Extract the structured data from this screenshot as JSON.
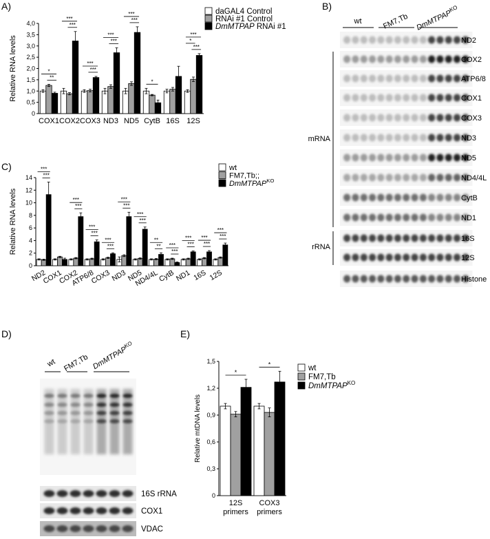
{
  "panel_labels": [
    "A)",
    "B)",
    "C)",
    "D)",
    "E)"
  ],
  "colors": {
    "white": "#ffffff",
    "grey": "#a0a0a0",
    "black": "#000000"
  },
  "chart_data": [
    {
      "id": "A",
      "type": "bar",
      "ylabel": "Relative RNA levels",
      "ylim": [
        0,
        4
      ],
      "yticks": [
        "0",
        "0,5",
        "1,0",
        "1,5",
        "2,0",
        "2,5",
        "3,0",
        "3,5",
        "4,0"
      ],
      "categories": [
        "COX1",
        "COX2",
        "COX3",
        "ND3",
        "ND5",
        "CytB",
        "16S",
        "12S"
      ],
      "legend_position": "top-right",
      "series": [
        {
          "name": "daGAL4 Control",
          "color": "#ffffff",
          "values": [
            1.0,
            1.0,
            1.0,
            1.0,
            1.0,
            1.0,
            1.0,
            1.0
          ],
          "errors": [
            0.06,
            0.12,
            0.06,
            0.12,
            0.12,
            0.12,
            0.08,
            0.06
          ]
        },
        {
          "name": "RNAi #1 Control",
          "color": "#a0a0a0",
          "values": [
            1.25,
            0.88,
            1.02,
            1.2,
            1.33,
            0.82,
            1.08,
            1.52
          ],
          "errors": [
            0.05,
            0.05,
            0.06,
            0.08,
            0.08,
            0.03,
            0.08,
            0.1
          ]
        },
        {
          "name_prefix": "DmMTPAP",
          "name_suffix": " RNAi #1",
          "color": "#000000",
          "values": [
            0.9,
            3.22,
            1.6,
            2.7,
            3.6,
            0.48,
            1.65,
            2.58
          ],
          "errors": [
            0.05,
            0.42,
            0.05,
            0.22,
            0.25,
            0.12,
            0.45,
            0.08
          ]
        }
      ],
      "significance": [
        {
          "category": "COX1",
          "marks": [
            "*",
            "**"
          ]
        },
        {
          "category": "COX2",
          "marks": [
            "***",
            "***"
          ]
        },
        {
          "category": "COX3",
          "marks": [
            "***",
            "***"
          ]
        },
        {
          "category": "ND3",
          "marks": [
            "***",
            "***"
          ]
        },
        {
          "category": "ND5",
          "marks": [
            "***",
            "***"
          ]
        },
        {
          "category": "CytB",
          "marks": [
            "*"
          ]
        },
        {
          "category": "12S",
          "marks": [
            "***",
            "*",
            "***"
          ]
        }
      ]
    },
    {
      "id": "C",
      "type": "bar",
      "ylabel": "Relative RNA levels",
      "ylim": [
        0,
        14
      ],
      "yticks": [
        "0",
        "2",
        "4",
        "6",
        "8",
        "10",
        "12",
        "14"
      ],
      "categories": [
        "ND2",
        "COX1",
        "COX2",
        "ATP6/8",
        "COX3",
        "ND3",
        "ND5",
        "ND4/4L",
        "CytB",
        "ND1",
        "16S",
        "12S"
      ],
      "legend_position": "top-right",
      "series": [
        {
          "name": "wt",
          "color": "#ffffff",
          "values": [
            1,
            1,
            1,
            1,
            1,
            1,
            1,
            1,
            1,
            1,
            1,
            1
          ],
          "errors": [
            0.1,
            0.1,
            0.1,
            0.1,
            0.1,
            0.4,
            0.1,
            0.1,
            0.1,
            0.1,
            0.1,
            0.1
          ]
        },
        {
          "name": "FM7,Tb;;",
          "color": "#a0a0a0",
          "values": [
            0.95,
            1.4,
            1.2,
            1.1,
            1.25,
            1.6,
            1.15,
            1.05,
            1.1,
            1.1,
            1.2,
            1.3
          ],
          "errors": [
            0.1,
            0.1,
            0.1,
            0.1,
            0.1,
            0.15,
            0.1,
            0.1,
            0.1,
            0.1,
            0.1,
            0.1
          ]
        },
        {
          "name_prefix": "DmMTPAP",
          "name_suffix": "KO",
          "color": "#000000",
          "values": [
            11.3,
            1.0,
            7.8,
            3.8,
            1.9,
            7.8,
            5.8,
            1.8,
            0.5,
            2.2,
            2.2,
            3.3
          ],
          "errors": [
            2.0,
            0.2,
            0.6,
            0.3,
            0.15,
            0.7,
            0.35,
            0.25,
            0.1,
            0.15,
            0.2,
            0.3
          ]
        }
      ],
      "significance": [
        {
          "category": "ND2",
          "marks": [
            "***",
            "***"
          ]
        },
        {
          "category": "COX2",
          "marks": [
            "***",
            "***"
          ]
        },
        {
          "category": "ATP6/8",
          "marks": [
            "***",
            "***"
          ]
        },
        {
          "category": "COX3",
          "marks": [
            "***",
            "***"
          ]
        },
        {
          "category": "ND3",
          "marks": [
            "***",
            "***"
          ]
        },
        {
          "category": "ND5",
          "marks": [
            "***",
            "***"
          ]
        },
        {
          "category": "ND4/4L",
          "marks": [
            "**",
            "**"
          ]
        },
        {
          "category": "CytB",
          "marks": [
            "***",
            "***"
          ]
        },
        {
          "category": "ND1",
          "marks": [
            "***",
            "***"
          ]
        },
        {
          "category": "16S",
          "marks": [
            "***",
            "***"
          ]
        },
        {
          "category": "12S",
          "marks": [
            "***",
            "***"
          ]
        }
      ]
    },
    {
      "id": "E",
      "type": "bar",
      "ylabel": "Relative mtDNA levels",
      "ylim": [
        0,
        1.5
      ],
      "yticks": [
        "0",
        "0,3",
        "0,6",
        "0,9",
        "1,2",
        "1,5"
      ],
      "categories": [
        [
          "12S",
          "primers"
        ],
        [
          "COX3",
          "primers"
        ]
      ],
      "legend_position": "top-right",
      "series": [
        {
          "name": "wt",
          "color": "#ffffff",
          "values": [
            1.0,
            1.0
          ],
          "errors": [
            0.03,
            0.03
          ]
        },
        {
          "name": "FM7,Tb",
          "color": "#a0a0a0",
          "values": [
            0.91,
            0.93
          ],
          "errors": [
            0.03,
            0.05
          ]
        },
        {
          "name_prefix": "DmMTPAP",
          "name_suffix": "KO",
          "color": "#000000",
          "values": [
            1.21,
            1.27
          ],
          "errors": [
            0.09,
            0.12
          ]
        }
      ],
      "significance": [
        {
          "category": "12S",
          "marks": [
            "*"
          ]
        },
        {
          "category": "COX3",
          "marks": [
            "*"
          ]
        }
      ]
    }
  ],
  "blot_B": {
    "groups": [
      "wt",
      "FM7,Tb"
    ],
    "ko_prefix": "DmMTPAP",
    "ko_suffix": "KO",
    "section_labels": [
      "mRNA",
      "rRNA"
    ],
    "rows": [
      "ND2",
      "COX2",
      "ATP6/8",
      "COX1",
      "COX3",
      "ND3",
      "ND5",
      "ND4/4L",
      "CytB",
      "ND1",
      "16S",
      "12S",
      "Histone"
    ]
  },
  "blot_D": {
    "groups": [
      "wt",
      "FM7,Tb"
    ],
    "ko_prefix": "DmMTPAP",
    "ko_suffix": "KO",
    "rows": [
      "16S rRNA",
      "COX1",
      "VDAC"
    ]
  }
}
